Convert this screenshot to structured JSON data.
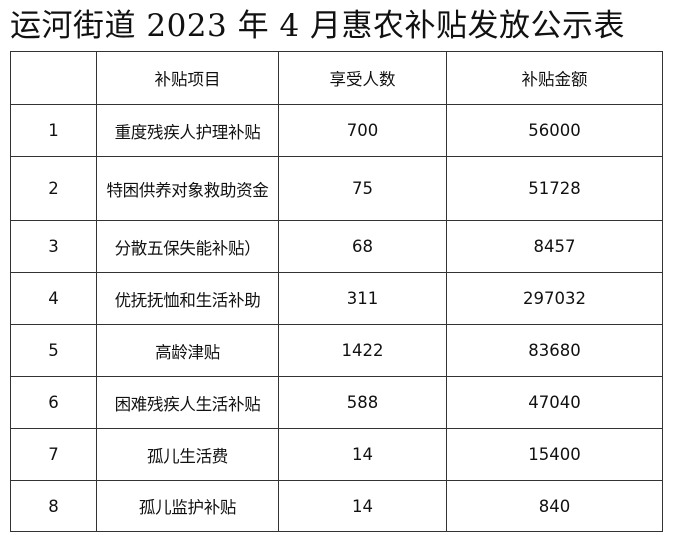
{
  "title": "运河街道 2023 年 4 月惠农补贴发放公示表",
  "table": {
    "headers": [
      "",
      "补贴项目",
      "享受人数",
      "补贴金额"
    ],
    "rows": [
      {
        "no": "1",
        "item": "重度残疾人护理补贴",
        "people": "700",
        "amount": "56000"
      },
      {
        "no": "2",
        "item": "特困供养对象救助资金",
        "people": "75",
        "amount": "51728"
      },
      {
        "no": "3",
        "item": "分散五保失能补贴）",
        "people": "68",
        "amount": "8457"
      },
      {
        "no": "4",
        "item": "优抚抚恤和生活补助",
        "people": "311",
        "amount": "297032"
      },
      {
        "no": "5",
        "item": "高龄津贴",
        "people": "1422",
        "amount": "83680"
      },
      {
        "no": "6",
        "item": "困难残疾人生活补贴",
        "people": "588",
        "amount": "47040"
      },
      {
        "no": "7",
        "item": "孤儿生活费",
        "people": "14",
        "amount": "15400"
      },
      {
        "no": "8",
        "item": "孤儿监护补贴",
        "people": "14",
        "amount": "840"
      }
    ]
  }
}
